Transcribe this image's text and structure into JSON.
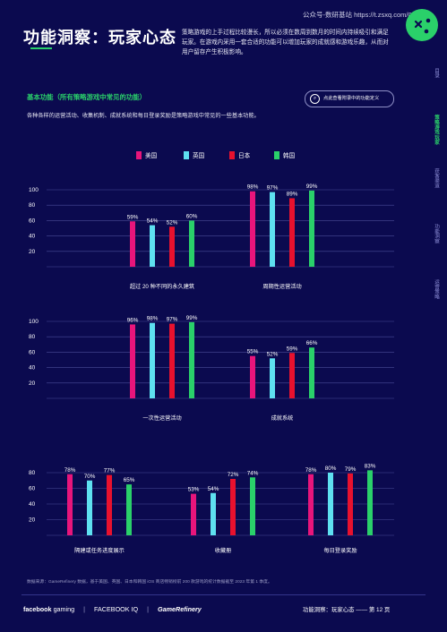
{
  "header": {
    "title": "功能洞察：玩家心态",
    "intro": "策略游戏的上手过程比较漫长，所以必须在数周到数月的时间内持续吸引和满足玩家。在游戏内采用一套合适的功能可以增加玩家的成就感和游戏乐趣，从而对用户留存产生积极影响。",
    "watermark_source": "公众号-数研基站 https://t.zsxq.com/0Rb"
  },
  "section": {
    "title": "基本功能（所有策略游戏中常见的功能）",
    "description": "各种各样的运营活动、收集机制、成就系统和每日登录奖励是策略游戏中常见的一些基本功能。",
    "definition_button": "点此查看附录中的功能定义"
  },
  "side_nav": {
    "items": [
      "目录",
      "策略游戏玩家",
      "获客渠道",
      "功能洞察",
      "运营策略"
    ],
    "active_index": 1
  },
  "colors": {
    "background": "#0b0a4f",
    "accent": "#2ad06a",
    "grid": "#4a4c98",
    "series": [
      "#e8157b",
      "#5ee0f0",
      "#e8112e",
      "#2ad06a"
    ]
  },
  "chart_data": [
    {
      "type": "bar",
      "categories": [
        "超过 20 种不同的永久建筑",
        "周期性运营活动"
      ],
      "series": [
        {
          "name": "美国",
          "values": [
            59,
            98
          ]
        },
        {
          "name": "英国",
          "values": [
            54,
            97
          ]
        },
        {
          "name": "日本",
          "values": [
            52,
            89
          ]
        },
        {
          "name": "韩国",
          "values": [
            60,
            99
          ]
        }
      ],
      "ylim": [
        0,
        100
      ],
      "yticks": [
        20,
        40,
        60,
        80,
        100
      ],
      "grid": true,
      "legend": "top-center"
    },
    {
      "type": "bar",
      "categories": [
        "一次性运营活动",
        "成就系统"
      ],
      "series": [
        {
          "name": "美国",
          "values": [
            96,
            55
          ]
        },
        {
          "name": "英国",
          "values": [
            98,
            52
          ]
        },
        {
          "name": "日本",
          "values": [
            97,
            59
          ]
        },
        {
          "name": "韩国",
          "values": [
            99,
            66
          ]
        }
      ],
      "ylim": [
        0,
        100
      ],
      "yticks": [
        20,
        40,
        60,
        80,
        100
      ],
      "grid": true
    },
    {
      "type": "bar",
      "categories": [
        "隔建或任务进度展示",
        "收藏册",
        "每日登录奖励"
      ],
      "series": [
        {
          "name": "美国",
          "values": [
            78,
            53,
            78
          ]
        },
        {
          "name": "英国",
          "values": [
            70,
            54,
            80
          ]
        },
        {
          "name": "日本",
          "values": [
            77,
            72,
            79
          ]
        },
        {
          "name": "韩国",
          "values": [
            65,
            74,
            83
          ]
        }
      ],
      "ylim": [
        0,
        80
      ],
      "yticks": [
        20,
        40,
        60,
        80
      ],
      "grid": true
    }
  ],
  "footer": {
    "source": "数据来源：GameRefinery 数据，基于美国、英国、日本和韩国 iOS 商店畅销榜前 200 款游戏的统计数据截至 2023 年第 1 季度。",
    "brand_fb": "facebook",
    "brand_fb_suffix": "gaming",
    "brand_iq": "FACEBOOK IQ",
    "brand_gr": "GameRefinery",
    "page_label": "功能洞察：玩家心态",
    "page_number": "第 12 页"
  }
}
